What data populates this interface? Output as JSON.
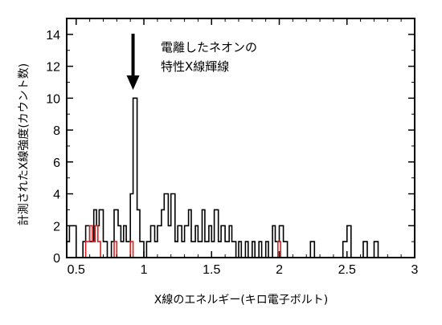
{
  "chart_data": {
    "type": "histogram",
    "xlabel": "X線のエネルギー(キロ電子ボルト)",
    "ylabel": "計測されたX線強度(カウント数)",
    "xlim": [
      0.43,
      3.0
    ],
    "ylim": [
      0,
      15
    ],
    "xticks": [
      "0.5",
      "1",
      "1.5",
      "2",
      "2.5",
      "3"
    ],
    "xtick_values": [
      0.5,
      1.0,
      1.5,
      2.0,
      2.5,
      3.0
    ],
    "yticks": [
      "0",
      "2",
      "4",
      "6",
      "8",
      "10",
      "12",
      "14"
    ],
    "ytick_values": [
      0,
      2,
      4,
      6,
      8,
      10,
      12,
      14
    ],
    "grid": false,
    "annotation": {
      "lines": [
        "電離したネオンの",
        "特性X線輝線"
      ],
      "arrow_x": 0.92
    },
    "series": [
      {
        "color": "#000000",
        "steps": [
          [
            0.43,
            1
          ],
          [
            0.45,
            2
          ],
          [
            0.48,
            2
          ],
          [
            0.5,
            0
          ],
          [
            0.53,
            0
          ],
          [
            0.55,
            1
          ],
          [
            0.57,
            2
          ],
          [
            0.6,
            1
          ],
          [
            0.63,
            3
          ],
          [
            0.65,
            2
          ],
          [
            0.67,
            3
          ],
          [
            0.7,
            1
          ],
          [
            0.73,
            0
          ],
          [
            0.76,
            1
          ],
          [
            0.78,
            3
          ],
          [
            0.81,
            2
          ],
          [
            0.83,
            1
          ],
          [
            0.85,
            2
          ],
          [
            0.87,
            1
          ],
          [
            0.9,
            4
          ],
          [
            0.92,
            10
          ],
          [
            0.95,
            3
          ],
          [
            0.97,
            1
          ],
          [
            1.0,
            0
          ],
          [
            1.02,
            1
          ],
          [
            1.05,
            2
          ],
          [
            1.08,
            1
          ],
          [
            1.1,
            2
          ],
          [
            1.13,
            3
          ],
          [
            1.15,
            4
          ],
          [
            1.18,
            2
          ],
          [
            1.2,
            4
          ],
          [
            1.23,
            1
          ],
          [
            1.25,
            2
          ],
          [
            1.28,
            1
          ],
          [
            1.3,
            2
          ],
          [
            1.33,
            3
          ],
          [
            1.35,
            1
          ],
          [
            1.38,
            2
          ],
          [
            1.4,
            1
          ],
          [
            1.43,
            3
          ],
          [
            1.45,
            1
          ],
          [
            1.48,
            2
          ],
          [
            1.5,
            1
          ],
          [
            1.52,
            3
          ],
          [
            1.55,
            1
          ],
          [
            1.57,
            2
          ],
          [
            1.6,
            1
          ],
          [
            1.63,
            2
          ],
          [
            1.65,
            1
          ],
          [
            1.68,
            0
          ],
          [
            1.7,
            1
          ],
          [
            1.72,
            0
          ],
          [
            1.75,
            1
          ],
          [
            1.77,
            0
          ],
          [
            1.8,
            1
          ],
          [
            1.82,
            0
          ],
          [
            1.85,
            1
          ],
          [
            1.87,
            0
          ],
          [
            1.9,
            1
          ],
          [
            1.92,
            0
          ],
          [
            1.95,
            2
          ],
          [
            1.97,
            1
          ],
          [
            2.0,
            2
          ],
          [
            2.03,
            1
          ],
          [
            2.06,
            0
          ],
          [
            2.23,
            1
          ],
          [
            2.26,
            0
          ],
          [
            2.47,
            1
          ],
          [
            2.5,
            2
          ],
          [
            2.53,
            0
          ],
          [
            2.62,
            1
          ],
          [
            2.65,
            0
          ],
          [
            2.7,
            1
          ],
          [
            2.73,
            0
          ],
          [
            2.76,
            0
          ]
        ]
      },
      {
        "color": "#e02020",
        "steps": [
          [
            0.55,
            0
          ],
          [
            0.57,
            1
          ],
          [
            0.6,
            2
          ],
          [
            0.62,
            1
          ],
          [
            0.64,
            2
          ],
          [
            0.66,
            1
          ],
          [
            0.68,
            0
          ],
          [
            0.76,
            0
          ],
          [
            0.78,
            1
          ],
          [
            0.8,
            0
          ],
          [
            0.88,
            0
          ],
          [
            0.9,
            1
          ],
          [
            0.92,
            0
          ],
          [
            1.97,
            0
          ],
          [
            1.99,
            1
          ],
          [
            2.01,
            0
          ],
          [
            2.03,
            0
          ]
        ]
      }
    ]
  }
}
